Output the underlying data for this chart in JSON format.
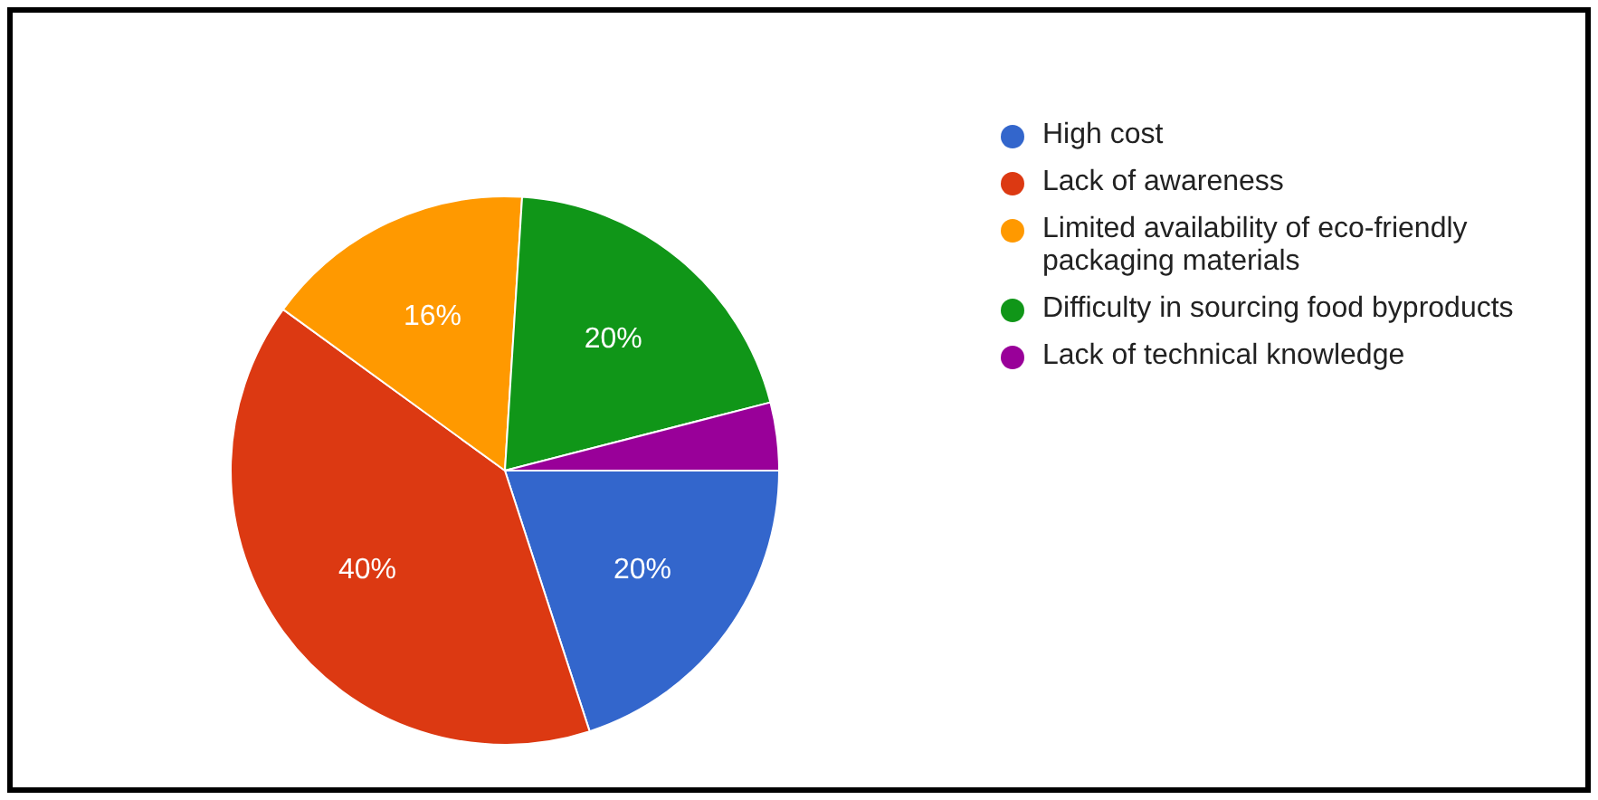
{
  "chart_data": {
    "type": "pie",
    "categories": [
      "High cost",
      "Lack of awareness",
      "Limited availability of eco-friendly packaging materials",
      "Difficulty in sourcing food byproducts",
      "Lack of technical knowledge"
    ],
    "values": [
      20,
      40,
      16,
      20,
      4
    ],
    "colors": [
      "#3366cc",
      "#dc3912",
      "#ff9900",
      "#109618",
      "#990099"
    ],
    "value_labels": [
      "20%",
      "40%",
      "16%",
      "20%",
      null
    ],
    "legend": "right"
  }
}
